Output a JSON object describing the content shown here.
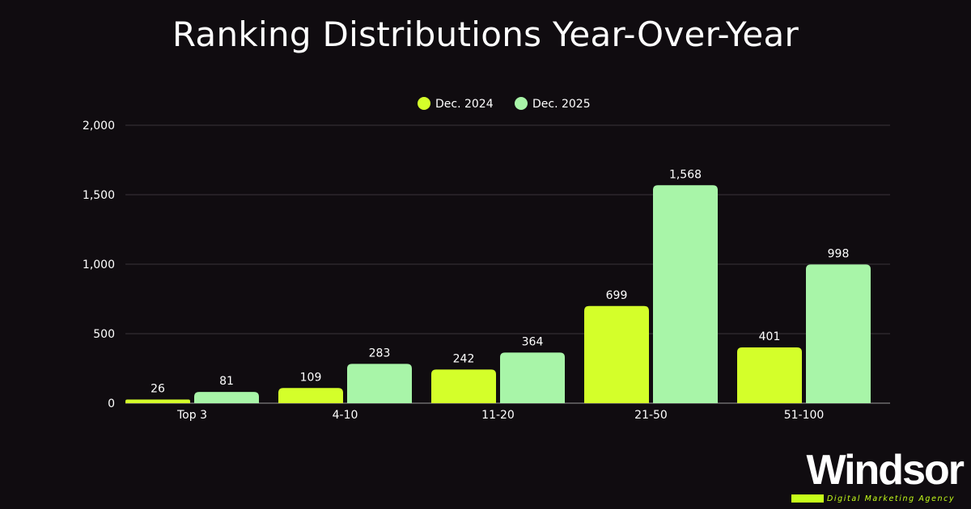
{
  "chart_data": {
    "type": "bar",
    "title": "Ranking Distributions Year-Over-Year",
    "categories": [
      "Top 3",
      "4-10",
      "11-20",
      "21-50",
      "51-100"
    ],
    "series": [
      {
        "name": "Dec. 2024",
        "color": "#d4ff2a",
        "values": [
          26,
          109,
          242,
          699,
          401
        ],
        "labels": [
          "26",
          "109",
          "242",
          "699",
          "401"
        ]
      },
      {
        "name": "Dec. 2025",
        "color": "#a8f5a8",
        "values": [
          81,
          283,
          364,
          1568,
          998
        ],
        "labels": [
          "81",
          "283",
          "364",
          "1,568",
          "998"
        ]
      }
    ],
    "ylim": [
      0,
      2000
    ],
    "yticks": [
      0,
      500,
      1000,
      1500,
      2000
    ],
    "ytick_labels": [
      "0",
      "500",
      "1,000",
      "1,500",
      "2,000"
    ],
    "xlabel": "",
    "ylabel": "",
    "grid": true,
    "legend_position": "top-center"
  },
  "brand": {
    "name": "Windsor",
    "tagline": "Digital Marketing Agency",
    "accent_color": "#c6ff1a"
  }
}
